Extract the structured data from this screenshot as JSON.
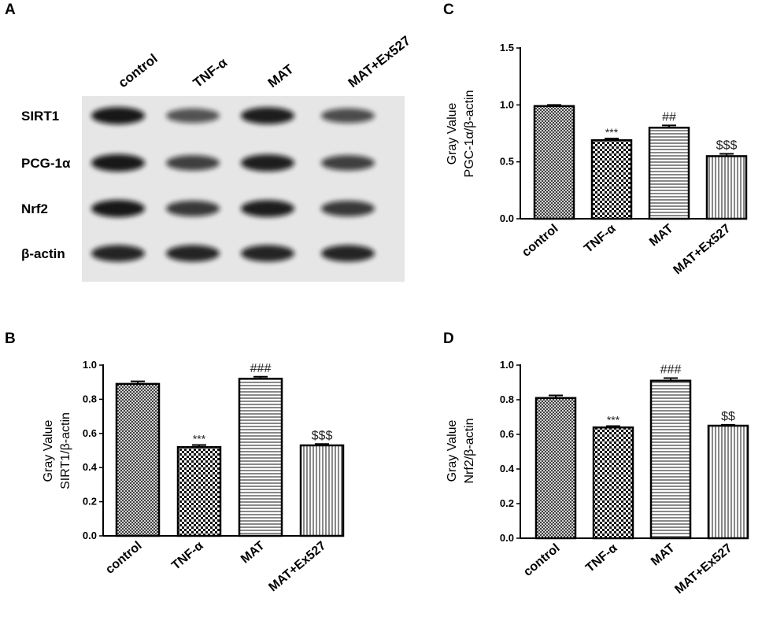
{
  "panels": {
    "a": "A",
    "b": "B",
    "c": "C",
    "d": "D"
  },
  "blot": {
    "lanes": [
      "control",
      "TNF-α",
      "MAT",
      "MAT+Ex527"
    ],
    "rows": [
      "SIRT1",
      "PCG-1α",
      "Nrf2",
      "β-actin"
    ],
    "band_intensity": [
      [
        1.0,
        0.55,
        0.95,
        0.6
      ],
      [
        1.0,
        0.7,
        0.95,
        0.7
      ],
      [
        1.0,
        0.75,
        0.95,
        0.75
      ],
      [
        0.9,
        0.9,
        0.9,
        0.9
      ]
    ]
  },
  "colors": {
    "bar_stroke": "#000000",
    "blot_bg": "#e6e6e6",
    "band": "#111111"
  },
  "chart_data": [
    {
      "id": "B",
      "type": "bar",
      "categories": [
        "control",
        "TNF-α",
        "MAT",
        "MAT+Ex527"
      ],
      "values": [
        0.89,
        0.52,
        0.92,
        0.53
      ],
      "errors": [
        0.015,
        0.012,
        0.012,
        0.008
      ],
      "annotations": [
        "",
        "***",
        "###",
        "$$$"
      ],
      "patterns": [
        "fine-cross",
        "checker",
        "horizontal",
        "vertical"
      ],
      "ylabel_line1": "Gray Value",
      "ylabel_line2": "SIRT1/β-actin",
      "ylim": [
        0,
        1.0
      ],
      "yticks": [
        "0.0",
        "0.2",
        "0.4",
        "0.6",
        "0.8",
        "1.0"
      ]
    },
    {
      "id": "C",
      "type": "bar",
      "categories": [
        "control",
        "TNF-α",
        "MAT",
        "MAT+Ex527"
      ],
      "values": [
        0.99,
        0.69,
        0.8,
        0.55
      ],
      "errors": [
        0.01,
        0.015,
        0.02,
        0.02
      ],
      "annotations": [
        "",
        "***",
        "##",
        "$$$"
      ],
      "patterns": [
        "fine-cross",
        "checker",
        "horizontal",
        "vertical"
      ],
      "ylabel_line1": "Gray Value",
      "ylabel_line2": "PGC-1α/β-actin",
      "ylim": [
        0,
        1.5
      ],
      "yticks": [
        "0.0",
        "0.5",
        "1.0",
        "1.5"
      ]
    },
    {
      "id": "D",
      "type": "bar",
      "categories": [
        "control",
        "TNF-α",
        "MAT",
        "MAT+Ex527"
      ],
      "values": [
        0.81,
        0.64,
        0.91,
        0.65
      ],
      "errors": [
        0.015,
        0.008,
        0.015,
        0.005
      ],
      "annotations": [
        "",
        "***",
        "###",
        "$$"
      ],
      "patterns": [
        "fine-cross",
        "checker",
        "horizontal",
        "vertical"
      ],
      "ylabel_line1": "Gray Value",
      "ylabel_line2": "Nrf2/β-actin",
      "ylim": [
        0,
        1.0
      ],
      "yticks": [
        "0.0",
        "0.2",
        "0.4",
        "0.6",
        "0.8",
        "1.0"
      ]
    }
  ]
}
